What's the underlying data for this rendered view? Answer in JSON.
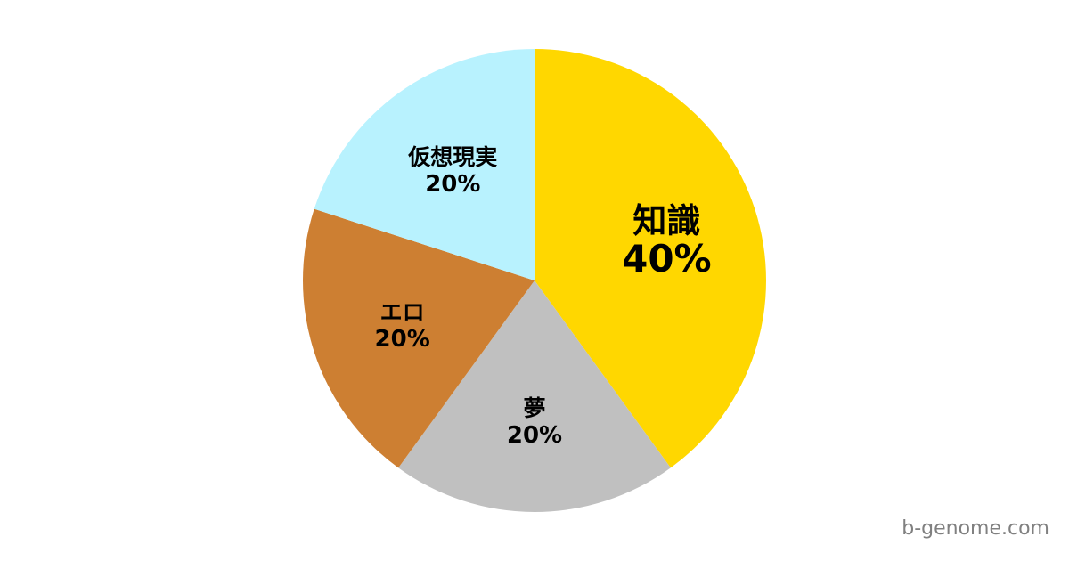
{
  "chart_data": {
    "type": "pie",
    "title": "",
    "start_angle": "top",
    "direction": "clockwise",
    "slices": [
      {
        "label": "知識",
        "value": 40,
        "value_label": "40%",
        "color": "#FFD700",
        "emphasized": true
      },
      {
        "label": "夢",
        "value": 20,
        "value_label": "20%",
        "color": "#C0C0C0"
      },
      {
        "label": "エロ",
        "value": 20,
        "value_label": "20%",
        "color": "#CD7F32"
      },
      {
        "label": "仮想現実",
        "value": 20,
        "value_label": "20%",
        "color": "#B8F2FE"
      }
    ],
    "legend": "none"
  },
  "watermark": "b-genome.com"
}
